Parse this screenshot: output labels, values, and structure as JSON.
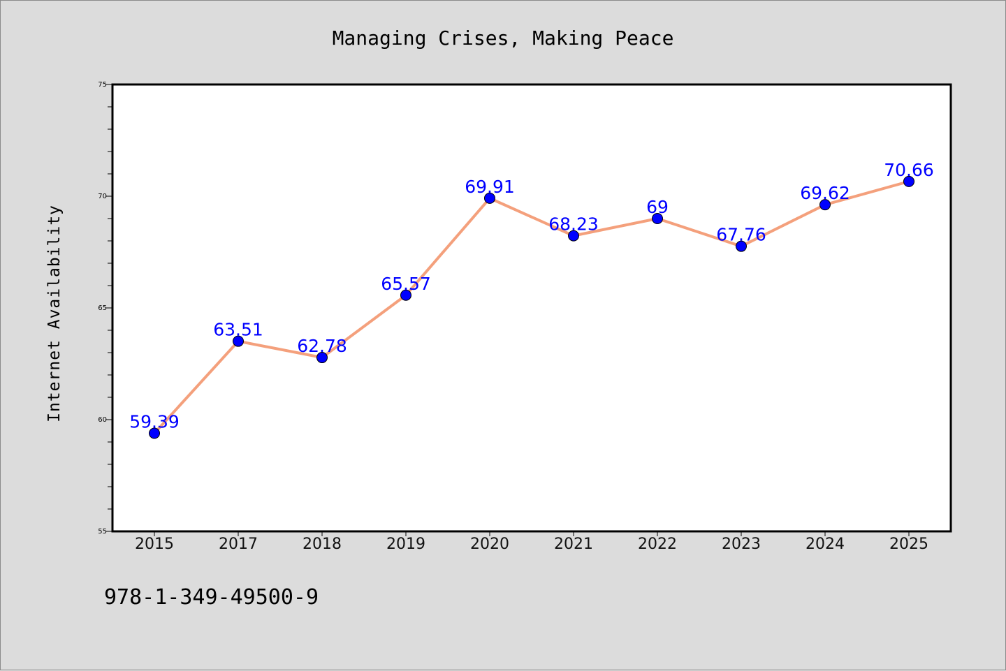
{
  "chart_data": {
    "type": "line",
    "title": "Managing Crises, Making Peace",
    "xlabel": "",
    "ylabel": "Internet Availability",
    "categories": [
      "2015",
      "2017",
      "2018",
      "2019",
      "2020",
      "2021",
      "2022",
      "2023",
      "2024",
      "2025"
    ],
    "series": [
      {
        "values": [
          59.39,
          63.51,
          62.78,
          65.57,
          69.91,
          68.23,
          69,
          67.76,
          69.62,
          70.66
        ],
        "data_labels": [
          "59.39",
          "63.51",
          "62.78",
          "65.57",
          "69.91",
          "68.23",
          "69",
          "67.76",
          "69.62",
          "70.66"
        ],
        "line_color": "#f4a07c",
        "marker_color": "#0000ff"
      }
    ],
    "ylim": [
      55,
      75
    ],
    "yticks": [
      55,
      60,
      65,
      70,
      75
    ],
    "ytick_labels": [
      "55",
      "60",
      "65",
      "70",
      "75"
    ],
    "grid": false,
    "legend": "none",
    "background_color": "#dcdcdc",
    "plot_background_color": "#ffffff",
    "label_color": "#0000ff"
  },
  "footer_text": "978-1-349-49500-9"
}
